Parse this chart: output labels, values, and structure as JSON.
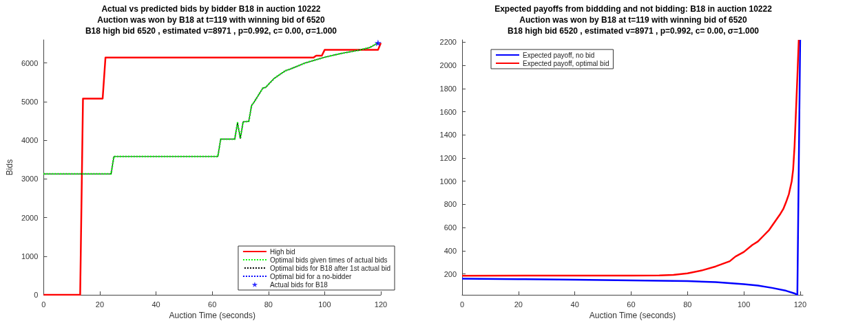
{
  "chart_data": [
    {
      "type": "line",
      "title": "Actual vs predicted bids by bidder B18 in auction 10222",
      "subtitle": "Auction was won by B18 at t=119 with winning bid of 6520\nB18 high bid 6520 , estimated v=8971 , p=0.992, c= 0.00, σ=1.000",
      "xlabel": "Auction Time (seconds)",
      "ylabel": "Bids",
      "xlim": [
        0,
        120
      ],
      "xticks": [
        0,
        20,
        40,
        60,
        80,
        100,
        120
      ],
      "ylim": [
        0,
        6600
      ],
      "yticks": [
        0,
        1000,
        2000,
        3000,
        4000,
        5000,
        6000
      ],
      "grid": false,
      "legend": "bottom right",
      "marker": "none",
      "series": [
        {
          "name": "High bid",
          "color": "#ff0000",
          "line_style": "solid",
          "x": [
            0,
            13,
            14,
            21,
            22,
            96,
            97,
            99,
            100,
            119,
            120
          ],
          "values": [
            0,
            0,
            5080,
            5080,
            6140,
            6140,
            6190,
            6190,
            6340,
            6340,
            6520
          ]
        },
        {
          "name": "Optimal bids given times of actual bids",
          "color": "#00ff00",
          "line_style": "dotted",
          "x": [
            0,
            24,
            25,
            62,
            63,
            68,
            69,
            70,
            71,
            73,
            74,
            75,
            78,
            79,
            82,
            86,
            88,
            93,
            100,
            106,
            112,
            116,
            119
          ],
          "values": [
            3130,
            3130,
            3580,
            3580,
            4030,
            4030,
            4450,
            4050,
            4480,
            4490,
            4900,
            5000,
            5350,
            5370,
            5600,
            5800,
            5850,
            6000,
            6150,
            6250,
            6330,
            6400,
            6520
          ]
        },
        {
          "name": "Optimal bids for B18 after 1st actual bid",
          "color": "#000000",
          "line_style": "dotted",
          "x": [
            0,
            24,
            25,
            62,
            63,
            68,
            69,
            70,
            71,
            73,
            74,
            75,
            78,
            79,
            82,
            86,
            88,
            93,
            100,
            106,
            112,
            116,
            119
          ],
          "values": [
            3130,
            3130,
            3580,
            3580,
            4030,
            4030,
            4450,
            4050,
            4480,
            4490,
            4900,
            5000,
            5350,
            5370,
            5600,
            5800,
            5850,
            6000,
            6150,
            6250,
            6330,
            6400,
            6520
          ]
        },
        {
          "name": "Optimal bid for a no-bidder",
          "color": "#0000ff",
          "line_style": "dotted"
        },
        {
          "name": "Actual bids for B18",
          "type": "scatter",
          "marker": "star",
          "color": "#0000ff",
          "x": [
            119
          ],
          "values": [
            6520
          ]
        }
      ]
    },
    {
      "type": "line",
      "title": "Expected payoffs from biddding and not bidding: B18 in auction 10222",
      "subtitle": "Auction was won by B18 at t=119 with winning bid of 6520\nB18 high bid 6520 , estimated v=8971 , p=0.992, c= 0.00, σ=1.000",
      "xlabel": "Auction Time (seconds)",
      "xlim": [
        0,
        121
      ],
      "xticks": [
        0,
        20,
        40,
        60,
        80,
        100,
        120
      ],
      "ylim": [
        20,
        2220
      ],
      "yticks": [
        200,
        400,
        600,
        800,
        1000,
        1200,
        1400,
        1600,
        1800,
        2000,
        2200
      ],
      "grid": false,
      "legend": "top left",
      "marker": "none",
      "series": [
        {
          "name": "Expected payoff, no bid",
          "color": "#0000ff",
          "line_style": "solid",
          "x": [
            0,
            20,
            40,
            60,
            80,
            90,
            100,
            105,
            110,
            115,
            118,
            119,
            120
          ],
          "values": [
            160,
            155,
            150,
            145,
            138,
            130,
            112,
            100,
            80,
            55,
            32,
            20,
            2220
          ]
        },
        {
          "name": "Expected payoff, optimal bid",
          "color": "#ff0000",
          "line_style": "solid",
          "x": [
            0,
            60,
            70,
            75,
            80,
            85,
            90,
            95,
            97,
            100,
            103,
            105,
            107,
            109,
            111,
            113,
            114,
            115,
            116,
            117,
            117.5,
            118,
            118.5,
            119,
            119.5
          ],
          "values": [
            185,
            186,
            188,
            192,
            205,
            230,
            265,
            310,
            350,
            390,
            450,
            480,
            530,
            580,
            650,
            720,
            760,
            820,
            890,
            1000,
            1100,
            1300,
            1600,
            1900,
            2220
          ]
        }
      ]
    }
  ]
}
